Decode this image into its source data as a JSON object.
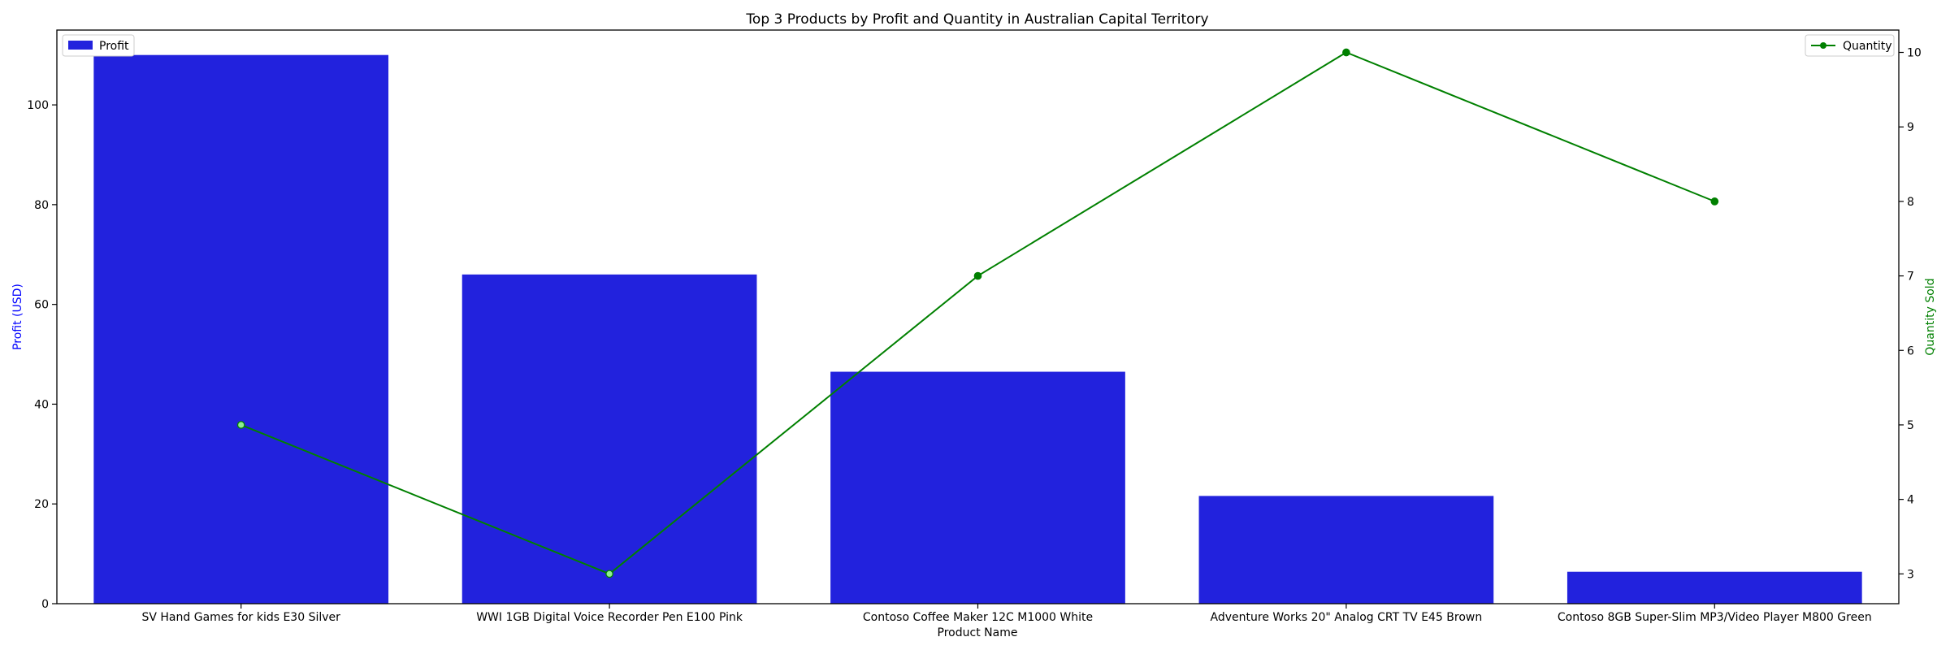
{
  "chart_data": {
    "type": "bar",
    "title": "Top 3 Products by Profit and Quantity in Australian Capital Territory",
    "xlabel": "Product Name",
    "ylabel": "Profit (USD)",
    "y2label": "Quantity Sold",
    "categories": [
      "SV Hand Games for kids E30 Silver",
      "WWI 1GB Digital Voice Recorder Pen E100 Pink",
      "Contoso Coffee Maker 12C M1000 White",
      "Adventure Works 20\" Analog CRT TV E45 Brown",
      "Contoso 8GB Super-Slim MP3/Video Player M800 Green"
    ],
    "series": [
      {
        "name": "Profit",
        "type": "bar",
        "axis": "left",
        "color": "#2222dd",
        "values": [
          110.0,
          66.0,
          46.5,
          21.6,
          6.4
        ]
      },
      {
        "name": "Quantity",
        "type": "line",
        "axis": "right",
        "color": "#008000",
        "marker_face": [
          "#90ee90",
          "#90ee90",
          "#008000",
          "#008000",
          "#008000"
        ],
        "values": [
          5,
          3,
          7,
          10,
          8
        ]
      }
    ],
    "ylim": [
      0,
      115
    ],
    "yticks": [
      0,
      20,
      40,
      60,
      80,
      100
    ],
    "y2lim": [
      2.6,
      10.3
    ],
    "y2ticks": [
      3,
      4,
      5,
      6,
      7,
      8,
      9,
      10
    ],
    "grid": false,
    "legend": {
      "left": "upper left",
      "right": "upper right"
    },
    "colors": {
      "ylabel": "#0000ff",
      "y2label": "#008000"
    }
  }
}
